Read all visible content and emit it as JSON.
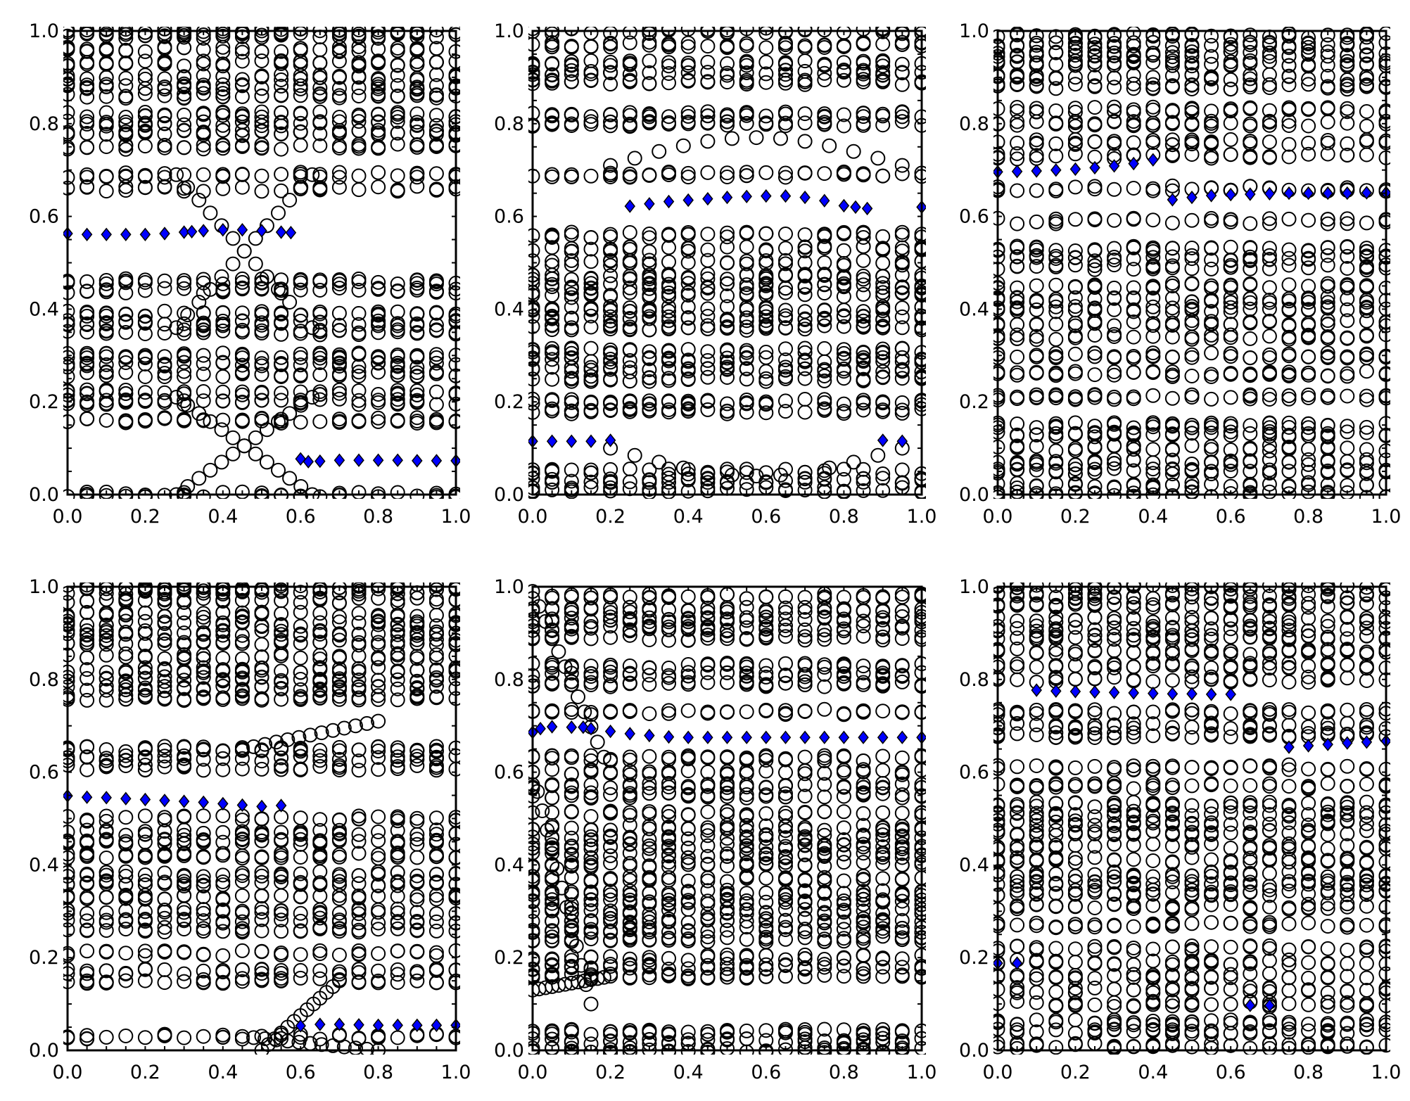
{
  "figure": {
    "title": "",
    "rows": 2,
    "cols": 3
  },
  "colors": {
    "circle_edge": "#000000",
    "diamond_fill": "#0000ff",
    "diamond_edge": "#000000",
    "axis": "#000000",
    "background": "#ffffff"
  },
  "chart_data": [
    {
      "type": "scatter",
      "panel": "top-left",
      "title": "",
      "xlabel": "",
      "ylabel": "",
      "xlim": [
        0,
        1
      ],
      "ylim": [
        0,
        1
      ],
      "xticks": [
        "0.0",
        "0.2",
        "0.4",
        "0.6",
        "0.8",
        "1.0"
      ],
      "yticks": [
        "0.0",
        "0.2",
        "0.4",
        "0.6",
        "0.8",
        "1.0"
      ],
      "circle_levels": [
        1.0,
        0.99,
        0.96,
        0.93,
        0.9,
        0.88,
        0.86,
        0.82,
        0.8,
        0.78,
        0.75,
        0.69,
        0.66,
        0.46,
        0.44,
        0.39,
        0.37,
        0.35,
        0.3,
        0.28,
        0.26,
        0.22,
        0.2,
        0.16,
        0.0
      ],
      "circle_curves": [
        {
          "y0": 0.69,
          "y1": 0.36,
          "x0": 0.28,
          "x1": 0.63
        },
        {
          "y0": 0.36,
          "y1": 0.69,
          "x0": 0.28,
          "x1": 0.63
        },
        {
          "y0": 0.21,
          "y1": 0.0,
          "x0": 0.28,
          "x1": 0.63
        },
        {
          "y0": 0.0,
          "y1": 0.21,
          "x0": 0.28,
          "x1": 0.63
        }
      ],
      "blue_diamonds": [
        {
          "x": 0.0,
          "y": 0.563
        },
        {
          "x": 0.05,
          "y": 0.561
        },
        {
          "x": 0.1,
          "y": 0.561
        },
        {
          "x": 0.15,
          "y": 0.561
        },
        {
          "x": 0.2,
          "y": 0.561
        },
        {
          "x": 0.25,
          "y": 0.563
        },
        {
          "x": 0.3,
          "y": 0.566
        },
        {
          "x": 0.32,
          "y": 0.567
        },
        {
          "x": 0.35,
          "y": 0.569
        },
        {
          "x": 0.4,
          "y": 0.571
        },
        {
          "x": 0.45,
          "y": 0.571
        },
        {
          "x": 0.5,
          "y": 0.569
        },
        {
          "x": 0.55,
          "y": 0.566
        },
        {
          "x": 0.575,
          "y": 0.565
        },
        {
          "x": 0.6,
          "y": 0.077
        },
        {
          "x": 0.62,
          "y": 0.071
        },
        {
          "x": 0.65,
          "y": 0.072
        },
        {
          "x": 0.7,
          "y": 0.074
        },
        {
          "x": 0.75,
          "y": 0.074
        },
        {
          "x": 0.8,
          "y": 0.074
        },
        {
          "x": 0.85,
          "y": 0.074
        },
        {
          "x": 0.9,
          "y": 0.073
        },
        {
          "x": 0.95,
          "y": 0.073
        },
        {
          "x": 1.0,
          "y": 0.073
        }
      ]
    },
    {
      "type": "scatter",
      "panel": "top-middle",
      "title": "",
      "xlabel": "",
      "ylabel": "",
      "xlim": [
        0,
        1
      ],
      "ylim": [
        0,
        1
      ],
      "xticks": [
        "0.0",
        "0.2",
        "0.4",
        "0.6",
        "0.8",
        "1.0"
      ],
      "yticks": [
        "0.0",
        "0.2",
        "0.4",
        "0.6",
        "0.8",
        "1.0"
      ],
      "circle_levels": [
        1.0,
        0.97,
        0.93,
        0.91,
        0.89,
        0.82,
        0.8,
        0.69,
        0.56,
        0.53,
        0.5,
        0.47,
        0.45,
        0.43,
        0.4,
        0.38,
        0.36,
        0.31,
        0.29,
        0.27,
        0.25,
        0.2,
        0.18,
        0.05,
        0.03,
        0.01
      ],
      "circle_curves": [
        {
          "y0": 0.71,
          "y1": 0.71,
          "x0": 0.2,
          "x1": 0.95,
          "bulge": 0.06
        },
        {
          "y0": 0.1,
          "y1": 0.1,
          "x0": 0.2,
          "x1": 0.95,
          "bulge": -0.06
        }
      ],
      "blue_diamonds": [
        {
          "x": 0.0,
          "y": 0.115
        },
        {
          "x": 0.05,
          "y": 0.115
        },
        {
          "x": 0.1,
          "y": 0.115
        },
        {
          "x": 0.15,
          "y": 0.115
        },
        {
          "x": 0.2,
          "y": 0.117
        },
        {
          "x": 0.25,
          "y": 0.622
        },
        {
          "x": 0.3,
          "y": 0.627
        },
        {
          "x": 0.35,
          "y": 0.632
        },
        {
          "x": 0.4,
          "y": 0.635
        },
        {
          "x": 0.45,
          "y": 0.638
        },
        {
          "x": 0.5,
          "y": 0.641
        },
        {
          "x": 0.55,
          "y": 0.643
        },
        {
          "x": 0.6,
          "y": 0.644
        },
        {
          "x": 0.65,
          "y": 0.644
        },
        {
          "x": 0.7,
          "y": 0.641
        },
        {
          "x": 0.75,
          "y": 0.634
        },
        {
          "x": 0.8,
          "y": 0.623
        },
        {
          "x": 0.83,
          "y": 0.62
        },
        {
          "x": 0.86,
          "y": 0.617
        },
        {
          "x": 0.9,
          "y": 0.117
        },
        {
          "x": 0.95,
          "y": 0.115
        },
        {
          "x": 1.0,
          "y": 0.62
        }
      ]
    },
    {
      "type": "scatter",
      "panel": "top-right",
      "title": "",
      "xlabel": "",
      "ylabel": "",
      "xlim": [
        0,
        1
      ],
      "ylim": [
        0,
        1
      ],
      "xticks": [
        "0.0",
        "0.2",
        "0.4",
        "0.6",
        "0.8",
        "1.0"
      ],
      "yticks": [
        "0.0",
        "0.2",
        "0.4",
        "0.6",
        "0.8",
        "1.0"
      ],
      "circle_levels": [
        0.99,
        0.97,
        0.95,
        0.93,
        0.9,
        0.88,
        0.83,
        0.8,
        0.76,
        0.73,
        0.66,
        0.59,
        0.53,
        0.51,
        0.49,
        0.45,
        0.42,
        0.4,
        0.37,
        0.34,
        0.3,
        0.26,
        0.21,
        0.15,
        0.13,
        0.1,
        0.07,
        0.05,
        0.02,
        0.0
      ],
      "circle_curves": [],
      "blue_diamonds": [
        {
          "x": 0.0,
          "y": 0.696
        },
        {
          "x": 0.05,
          "y": 0.697
        },
        {
          "x": 0.1,
          "y": 0.698
        },
        {
          "x": 0.15,
          "y": 0.7
        },
        {
          "x": 0.2,
          "y": 0.702
        },
        {
          "x": 0.25,
          "y": 0.705
        },
        {
          "x": 0.3,
          "y": 0.709
        },
        {
          "x": 0.35,
          "y": 0.714
        },
        {
          "x": 0.4,
          "y": 0.722
        },
        {
          "x": 0.45,
          "y": 0.636
        },
        {
          "x": 0.5,
          "y": 0.641
        },
        {
          "x": 0.55,
          "y": 0.645
        },
        {
          "x": 0.6,
          "y": 0.647
        },
        {
          "x": 0.65,
          "y": 0.648
        },
        {
          "x": 0.7,
          "y": 0.649
        },
        {
          "x": 0.75,
          "y": 0.65
        },
        {
          "x": 0.8,
          "y": 0.65
        },
        {
          "x": 0.85,
          "y": 0.65
        },
        {
          "x": 0.9,
          "y": 0.65
        },
        {
          "x": 0.95,
          "y": 0.651
        },
        {
          "x": 1.0,
          "y": 0.651
        }
      ]
    },
    {
      "type": "scatter",
      "panel": "bottom-left",
      "title": "",
      "xlabel": "",
      "ylabel": "",
      "xlim": [
        0,
        1
      ],
      "ylim": [
        0,
        1
      ],
      "xticks": [
        "0.0",
        "0.2",
        "0.4",
        "0.6",
        "0.8",
        "1.0"
      ],
      "yticks": [
        "0.0",
        "0.2",
        "0.4",
        "0.6",
        "0.8",
        "1.0"
      ],
      "circle_levels": [
        1.0,
        0.99,
        0.97,
        0.94,
        0.92,
        0.9,
        0.88,
        0.85,
        0.82,
        0.8,
        0.78,
        0.76,
        0.65,
        0.63,
        0.61,
        0.5,
        0.47,
        0.45,
        0.42,
        0.38,
        0.36,
        0.33,
        0.3,
        0.28,
        0.26,
        0.21,
        0.17,
        0.15,
        0.03
      ],
      "circle_curves": [
        {
          "y0": 0.65,
          "y1": 0.71,
          "x0": 0.45,
          "x1": 0.8
        },
        {
          "y0": 0.03,
          "y1": 0.0,
          "x0": 0.45,
          "x1": 0.8
        },
        {
          "y0": 0.0,
          "y1": 0.15,
          "x0": 0.5,
          "x1": 0.7
        }
      ],
      "blue_diamonds": [
        {
          "x": 0.0,
          "y": 0.549
        },
        {
          "x": 0.05,
          "y": 0.546
        },
        {
          "x": 0.1,
          "y": 0.545
        },
        {
          "x": 0.15,
          "y": 0.543
        },
        {
          "x": 0.2,
          "y": 0.541
        },
        {
          "x": 0.25,
          "y": 0.539
        },
        {
          "x": 0.3,
          "y": 0.537
        },
        {
          "x": 0.35,
          "y": 0.535
        },
        {
          "x": 0.4,
          "y": 0.532
        },
        {
          "x": 0.45,
          "y": 0.529
        },
        {
          "x": 0.5,
          "y": 0.526
        },
        {
          "x": 0.55,
          "y": 0.528
        },
        {
          "x": 0.6,
          "y": 0.053
        },
        {
          "x": 0.65,
          "y": 0.056
        },
        {
          "x": 0.7,
          "y": 0.056
        },
        {
          "x": 0.75,
          "y": 0.055
        },
        {
          "x": 0.8,
          "y": 0.054
        },
        {
          "x": 0.85,
          "y": 0.054
        },
        {
          "x": 0.9,
          "y": 0.054
        },
        {
          "x": 0.95,
          "y": 0.054
        },
        {
          "x": 1.0,
          "y": 0.054
        }
      ]
    },
    {
      "type": "scatter",
      "panel": "bottom-middle",
      "title": "",
      "xlabel": "",
      "ylabel": "",
      "xlim": [
        0,
        1
      ],
      "ylim": [
        0,
        1
      ],
      "xticks": [
        "0.0",
        "0.2",
        "0.4",
        "0.6",
        "0.8",
        "1.0"
      ],
      "yticks": [
        "0.0",
        "0.2",
        "0.4",
        "0.6",
        "0.8",
        "1.0"
      ],
      "circle_levels": [
        0.98,
        0.95,
        0.93,
        0.91,
        0.89,
        0.83,
        0.81,
        0.79,
        0.73,
        0.63,
        0.6,
        0.57,
        0.55,
        0.51,
        0.48,
        0.46,
        0.44,
        0.42,
        0.4,
        0.37,
        0.34,
        0.32,
        0.3,
        0.28,
        0.26,
        0.24,
        0.2,
        0.18,
        0.16,
        0.04,
        0.02,
        0.0
      ],
      "circle_curves": [
        {
          "y0": 0.99,
          "y1": 0.6,
          "x0": 0.0,
          "x1": 0.2
        },
        {
          "y0": 0.6,
          "y1": 0.1,
          "x0": 0.0,
          "x1": 0.15
        },
        {
          "y0": 0.13,
          "y1": 0.16,
          "x0": 0.0,
          "x1": 0.2
        }
      ],
      "blue_diamonds": [
        {
          "x": 0.0,
          "y": 0.686
        },
        {
          "x": 0.02,
          "y": 0.694
        },
        {
          "x": 0.05,
          "y": 0.698
        },
        {
          "x": 0.1,
          "y": 0.697
        },
        {
          "x": 0.13,
          "y": 0.697
        },
        {
          "x": 0.15,
          "y": 0.694
        },
        {
          "x": 0.2,
          "y": 0.688
        },
        {
          "x": 0.25,
          "y": 0.683
        },
        {
          "x": 0.3,
          "y": 0.679
        },
        {
          "x": 0.35,
          "y": 0.676
        },
        {
          "x": 0.4,
          "y": 0.675
        },
        {
          "x": 0.45,
          "y": 0.675
        },
        {
          "x": 0.5,
          "y": 0.675
        },
        {
          "x": 0.55,
          "y": 0.675
        },
        {
          "x": 0.6,
          "y": 0.675
        },
        {
          "x": 0.65,
          "y": 0.675
        },
        {
          "x": 0.7,
          "y": 0.675
        },
        {
          "x": 0.75,
          "y": 0.675
        },
        {
          "x": 0.8,
          "y": 0.675
        },
        {
          "x": 0.85,
          "y": 0.675
        },
        {
          "x": 0.9,
          "y": 0.675
        },
        {
          "x": 0.95,
          "y": 0.675
        },
        {
          "x": 1.0,
          "y": 0.675
        }
      ]
    },
    {
      "type": "scatter",
      "panel": "bottom-right",
      "title": "",
      "xlabel": "",
      "ylabel": "",
      "xlim": [
        0,
        1
      ],
      "ylim": [
        0,
        1
      ],
      "xticks": [
        "0.0",
        "0.2",
        "0.4",
        "0.6",
        "0.8",
        "1.0"
      ],
      "yticks": [
        "0.0",
        "0.2",
        "0.4",
        "0.6",
        "0.8",
        "1.0"
      ],
      "circle_levels": [
        1.0,
        0.98,
        0.96,
        0.93,
        0.91,
        0.89,
        0.86,
        0.83,
        0.8,
        0.73,
        0.7,
        0.68,
        0.61,
        0.57,
        0.53,
        0.51,
        0.49,
        0.47,
        0.44,
        0.41,
        0.38,
        0.36,
        0.34,
        0.31,
        0.27,
        0.22,
        0.19,
        0.16,
        0.13,
        0.1,
        0.06,
        0.04,
        0.01
      ],
      "circle_curves": [],
      "blue_diamonds": [
        {
          "x": 0.0,
          "y": 0.188
        },
        {
          "x": 0.05,
          "y": 0.188
        },
        {
          "x": 0.1,
          "y": 0.777
        },
        {
          "x": 0.15,
          "y": 0.775
        },
        {
          "x": 0.2,
          "y": 0.774
        },
        {
          "x": 0.25,
          "y": 0.773
        },
        {
          "x": 0.3,
          "y": 0.772
        },
        {
          "x": 0.35,
          "y": 0.771
        },
        {
          "x": 0.4,
          "y": 0.77
        },
        {
          "x": 0.45,
          "y": 0.769
        },
        {
          "x": 0.5,
          "y": 0.769
        },
        {
          "x": 0.55,
          "y": 0.768
        },
        {
          "x": 0.6,
          "y": 0.768
        },
        {
          "x": 0.65,
          "y": 0.097
        },
        {
          "x": 0.7,
          "y": 0.097
        },
        {
          "x": 0.75,
          "y": 0.654
        },
        {
          "x": 0.8,
          "y": 0.657
        },
        {
          "x": 0.85,
          "y": 0.66
        },
        {
          "x": 0.9,
          "y": 0.663
        },
        {
          "x": 0.95,
          "y": 0.665
        },
        {
          "x": 1.0,
          "y": 0.667
        }
      ]
    }
  ]
}
